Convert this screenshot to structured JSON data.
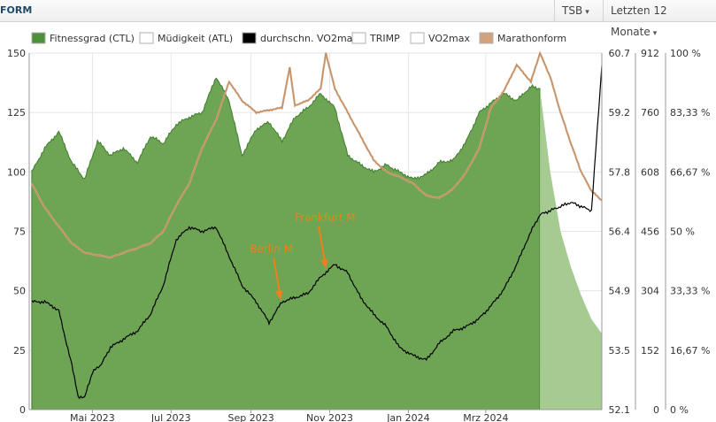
{
  "header": {
    "title": "FORM",
    "tsb_label": "TSB",
    "range_label": "Letzten 12 Monate",
    "chevron_icon": "chevron-down-icon"
  },
  "chart_data": {
    "type": "area",
    "legend_placement": "top",
    "legend": [
      {
        "label": "Fitnessgrad (CTL)",
        "color": "#4e8f3a"
      },
      {
        "label": "Müdigkeit (ATL)",
        "color": "#ffffff"
      },
      {
        "label": "durchschn. VO2max",
        "color": "#000000"
      },
      {
        "label": "TRIMP",
        "color": "#ffffff"
      },
      {
        "label": "VO2max",
        "color": "#ffffff"
      },
      {
        "label": "Marathonform",
        "color": "#d2a27a"
      }
    ],
    "x_ticks": [
      "Mai 2023",
      "Jul 2023",
      "Sep 2023",
      "Nov 2023",
      "Jan 2024",
      "Mrz 2024"
    ],
    "axes": {
      "left": {
        "range": [
          0,
          150
        ],
        "ticks": [
          "0",
          "25",
          "50",
          "75",
          "100",
          "125",
          "150"
        ]
      },
      "vo2": {
        "range": [
          52.1,
          60.7
        ],
        "ticks": [
          "52.1",
          "53.5",
          "54.9",
          "56.4",
          "57.8",
          "59.2",
          "60.7"
        ]
      },
      "trimp": {
        "range": [
          0,
          912
        ],
        "ticks": [
          "0",
          "152",
          "304",
          "456",
          "608",
          "760",
          "912"
        ]
      },
      "percent": {
        "range": [
          0,
          100
        ],
        "ticks": [
          "0 %",
          "16,67 %",
          "33,33 %",
          "50 %",
          "66,67 %",
          "83,33 %",
          "100 %"
        ]
      }
    },
    "grid": true,
    "annotations": [
      {
        "label": "Berlin M",
        "date": "2023-09-24",
        "color": "#f07f1e"
      },
      {
        "label": "Frankfurt M",
        "date": "2023-10-29",
        "color": "#f07f1e"
      }
    ],
    "colors": {
      "ctl": "#6da554",
      "ctl_projection": "#a5cb91",
      "marathon": "#d2a27a",
      "vo2avg": "#000000",
      "annotation": "#f07f1e"
    },
    "series": [
      {
        "name": "Fitnessgrad (CTL)",
        "axis": "left",
        "x": [
          "2023-03-15",
          "2023-03-25",
          "2023-04-05",
          "2023-04-15",
          "2023-04-25",
          "2023-05-05",
          "2023-05-15",
          "2023-05-25",
          "2023-06-05",
          "2023-06-15",
          "2023-06-25",
          "2023-07-05",
          "2023-07-15",
          "2023-07-25",
          "2023-08-05",
          "2023-08-15",
          "2023-08-25",
          "2023-09-05",
          "2023-09-15",
          "2023-09-25",
          "2023-10-05",
          "2023-10-15",
          "2023-10-25",
          "2023-11-05",
          "2023-11-15",
          "2023-11-25",
          "2023-12-05",
          "2023-12-15",
          "2023-12-25",
          "2024-01-05",
          "2024-01-15",
          "2024-01-25",
          "2024-02-05",
          "2024-02-15",
          "2024-02-25",
          "2024-03-05",
          "2024-03-15",
          "2024-03-25",
          "2024-04-05",
          "2024-04-12"
        ],
        "values": [
          100,
          110,
          117,
          104,
          97,
          113,
          107,
          110,
          104,
          115,
          112,
          120,
          123,
          125,
          140,
          130,
          107,
          118,
          121,
          113,
          123,
          127,
          133,
          127,
          107,
          103,
          100,
          103,
          100,
          97,
          99,
          104,
          105,
          113,
          125,
          129,
          133,
          130,
          136,
          135
        ]
      },
      {
        "name": "Fitnessgrad (CTL) Prognose",
        "axis": "left",
        "x": [
          "2024-04-12",
          "2024-04-20",
          "2024-04-28",
          "2024-05-06",
          "2024-05-14",
          "2024-05-22",
          "2024-05-30"
        ],
        "values": [
          135,
          100,
          75,
          60,
          48,
          38,
          32
        ]
      },
      {
        "name": "Marathonform",
        "axis": "left",
        "x": [
          "2023-03-15",
          "2023-03-25",
          "2023-04-05",
          "2023-04-15",
          "2023-04-25",
          "2023-05-05",
          "2023-05-15",
          "2023-05-25",
          "2023-06-05",
          "2023-06-15",
          "2023-06-25",
          "2023-07-05",
          "2023-07-15",
          "2023-07-25",
          "2023-08-05",
          "2023-08-15",
          "2023-08-25",
          "2023-09-05",
          "2023-09-15",
          "2023-09-25",
          "2023-10-01",
          "2023-10-05",
          "2023-10-15",
          "2023-10-25",
          "2023-10-29",
          "2023-11-05",
          "2023-11-15",
          "2023-11-25",
          "2023-12-05",
          "2023-12-15",
          "2023-12-25",
          "2024-01-05",
          "2024-01-15",
          "2024-01-25",
          "2024-02-05",
          "2024-02-15",
          "2024-02-25",
          "2024-03-05",
          "2024-03-15",
          "2024-03-25",
          "2024-04-05",
          "2024-04-12",
          "2024-04-20",
          "2024-04-28",
          "2024-05-06",
          "2024-05-14",
          "2024-05-22",
          "2024-05-30"
        ],
        "values": [
          95,
          85,
          77,
          70,
          66,
          65,
          64,
          66,
          68,
          70,
          75,
          86,
          95,
          110,
          122,
          138,
          130,
          125,
          126,
          127,
          144,
          128,
          130,
          135,
          150,
          135,
          125,
          115,
          105,
          100,
          98,
          95,
          90,
          89,
          93,
          100,
          110,
          127,
          134,
          145,
          138,
          150,
          140,
          125,
          112,
          100,
          92,
          88
        ]
      },
      {
        "name": "durchschn. VO2max",
        "axis": "vo2",
        "x": [
          "2023-03-15",
          "2023-03-25",
          "2023-04-05",
          "2023-04-10",
          "2023-04-15",
          "2023-04-20",
          "2023-04-25",
          "2023-05-01",
          "2023-05-08",
          "2023-05-15",
          "2023-05-25",
          "2023-06-05",
          "2023-06-15",
          "2023-06-25",
          "2023-07-05",
          "2023-07-15",
          "2023-07-25",
          "2023-08-05",
          "2023-08-15",
          "2023-08-25",
          "2023-09-05",
          "2023-09-15",
          "2023-09-25",
          "2023-10-05",
          "2023-10-15",
          "2023-10-25",
          "2023-11-05",
          "2023-11-15",
          "2023-11-25",
          "2023-12-05",
          "2023-12-15",
          "2023-12-25",
          "2024-01-05",
          "2024-01-15",
          "2024-01-25",
          "2024-02-05",
          "2024-02-15",
          "2024-02-25",
          "2024-03-05",
          "2024-03-15",
          "2024-03-25",
          "2024-04-05",
          "2024-04-12",
          "2024-04-20",
          "2024-04-28",
          "2024-05-06",
          "2024-05-14",
          "2024-05-22",
          "2024-05-30"
        ],
        "values": [
          54.7,
          54.7,
          54.5,
          53.8,
          53.2,
          52.4,
          52.4,
          53.0,
          53.2,
          53.6,
          53.8,
          54.0,
          54.4,
          55.1,
          56.2,
          56.5,
          56.4,
          56.5,
          55.8,
          55.1,
          54.7,
          54.2,
          54.7,
          54.8,
          54.9,
          55.3,
          55.6,
          55.4,
          54.8,
          54.4,
          54.1,
          53.6,
          53.4,
          53.3,
          53.7,
          54.0,
          54.1,
          54.3,
          54.6,
          55.0,
          55.6,
          56.4,
          56.8,
          56.9,
          57.0,
          57.1,
          57.0,
          56.9,
          60.4
        ]
      }
    ]
  }
}
